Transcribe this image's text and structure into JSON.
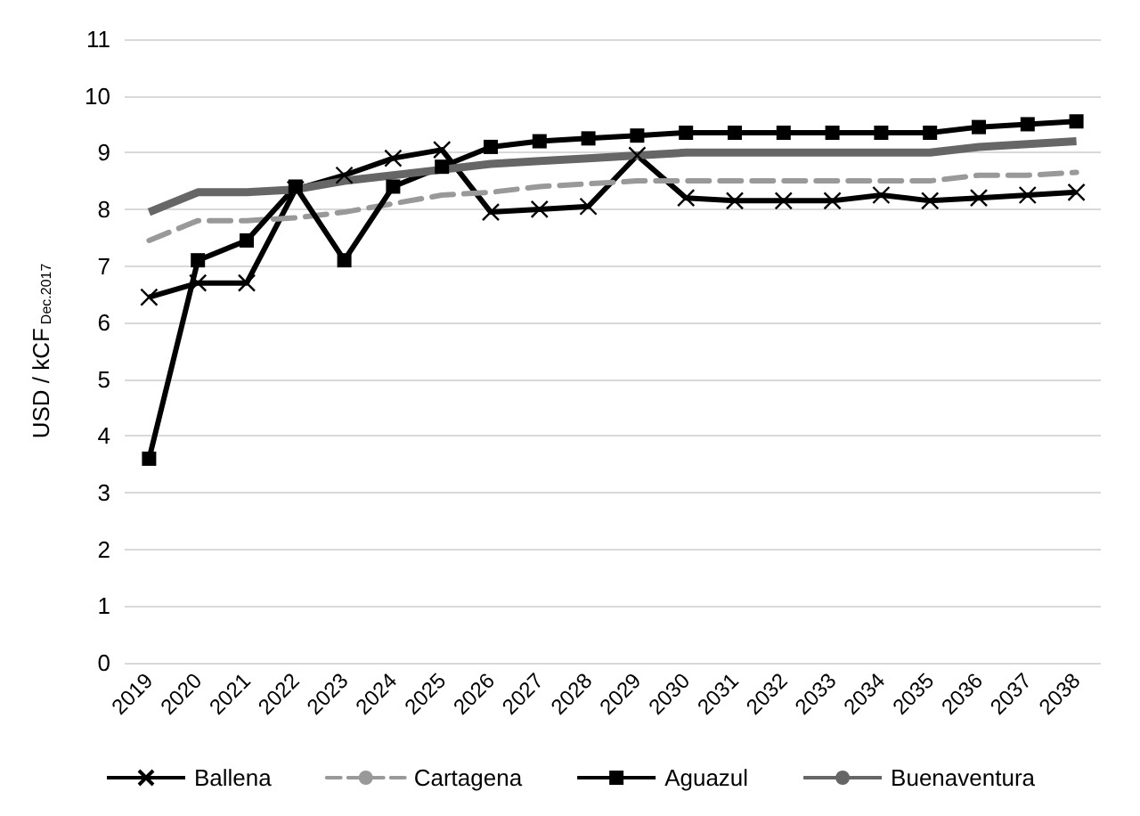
{
  "chart_data": {
    "type": "line",
    "ylabel": "USD / kCF$_{Dec.2017}$",
    "categories": [
      "2019",
      "2020",
      "2021",
      "2022",
      "2023",
      "2024",
      "2025",
      "2026",
      "2027",
      "2028",
      "2029",
      "2030",
      "2031",
      "2032",
      "2033",
      "2034",
      "2035",
      "2036",
      "2037",
      "2038"
    ],
    "series": [
      {
        "name": "Ballena",
        "color": "#000000",
        "marker": "cross",
        "line_style": "solid",
        "values": [
          6.45,
          6.7,
          6.7,
          8.35,
          8.6,
          8.9,
          9.05,
          7.95,
          8.0,
          8.05,
          8.95,
          8.2,
          8.15,
          8.15,
          8.15,
          8.25,
          8.15,
          8.2,
          8.25,
          8.3
        ]
      },
      {
        "name": "Cartagena",
        "color": "#999999",
        "marker": "none",
        "line_style": "dashed",
        "values": [
          7.45,
          7.8,
          7.8,
          7.85,
          7.95,
          8.1,
          8.25,
          8.3,
          8.4,
          8.45,
          8.5,
          8.5,
          8.5,
          8.5,
          8.5,
          8.5,
          8.5,
          8.6,
          8.6,
          8.65
        ]
      },
      {
        "name": "Aguazul",
        "color": "#000000",
        "marker": "square",
        "line_style": "solid",
        "values": [
          3.6,
          7.1,
          7.45,
          8.4,
          7.1,
          8.4,
          8.75,
          9.1,
          9.2,
          9.25,
          9.3,
          9.35,
          9.35,
          9.35,
          9.35,
          9.35,
          9.35,
          9.45,
          9.5,
          9.55
        ]
      },
      {
        "name": "Buenaventura",
        "color": "#666666",
        "marker": "none",
        "line_style": "solid",
        "values": [
          7.95,
          8.3,
          8.3,
          8.35,
          8.5,
          8.6,
          8.7,
          8.8,
          8.85,
          8.9,
          8.95,
          9.0,
          9.0,
          9.0,
          9.0,
          9.0,
          9.0,
          9.1,
          9.15,
          9.2
        ]
      }
    ],
    "ylim": [
      0,
      11
    ],
    "yticks": [
      0,
      1,
      2,
      3,
      4,
      5,
      6,
      7,
      8,
      9,
      10,
      11
    ],
    "grid": "y",
    "legend": "bottom"
  }
}
